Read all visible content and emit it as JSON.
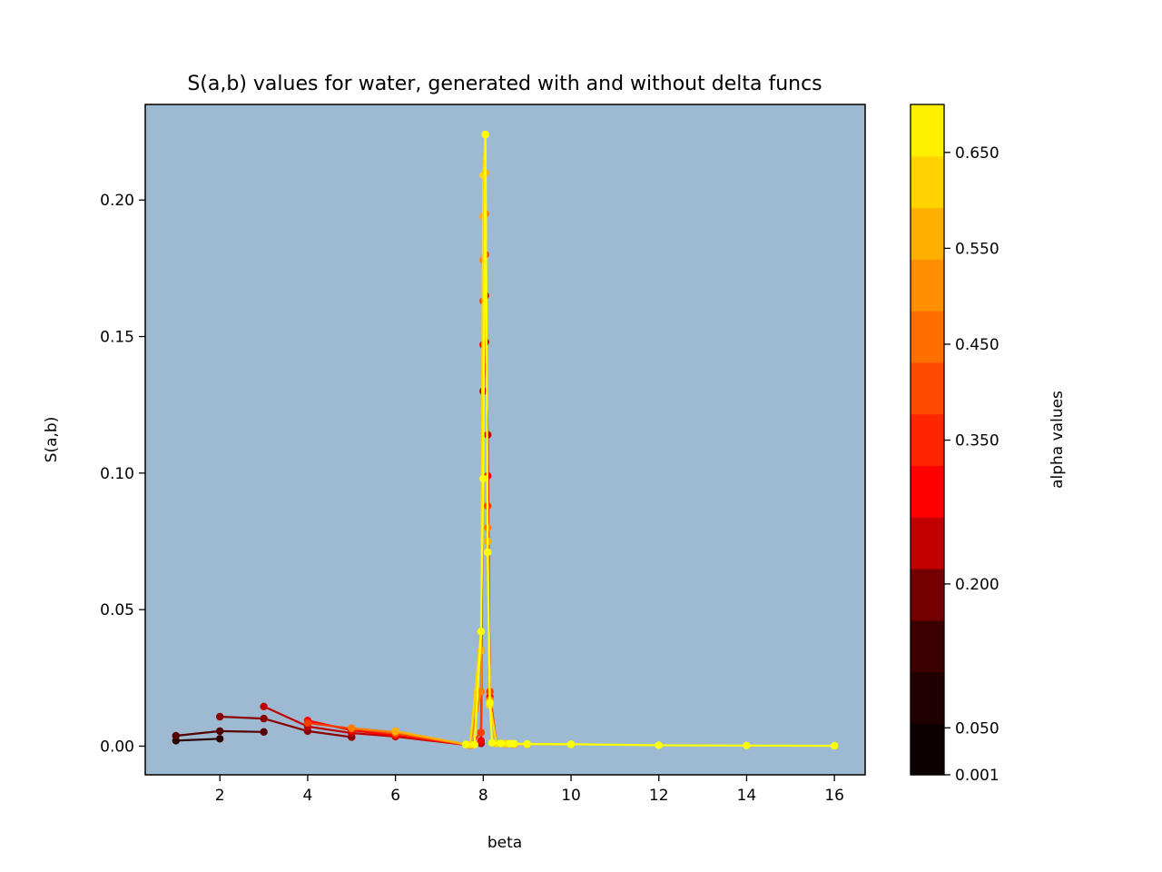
{
  "chart_data": {
    "type": "line",
    "title": "S(a,b) values for water, generated with and without delta funcs",
    "xlabel": "beta",
    "ylabel": "S(a,b)",
    "xlim": [
      0.3,
      16.7
    ],
    "ylim": [
      -0.0105,
      0.235
    ],
    "xticks": [
      2,
      4,
      6,
      8,
      10,
      12,
      14,
      16
    ],
    "yticks": [
      0.0,
      0.05,
      0.1,
      0.15,
      0.2
    ],
    "xtick_labels": [
      "2",
      "4",
      "6",
      "8",
      "10",
      "12",
      "14",
      "16"
    ],
    "ytick_labels": [
      "0.00",
      "0.05",
      "0.10",
      "0.15",
      "0.20"
    ],
    "plot_background": "#9ebad2",
    "markers": true,
    "grid": false,
    "colorbar": {
      "label": "alpha values",
      "colormap": "hot (discrete)",
      "range": [
        0.001,
        0.7
      ],
      "tick_values": [
        0.001,
        0.05,
        0.2,
        0.35,
        0.45,
        0.55,
        0.65
      ],
      "tick_labels": [
        "0.001",
        "0.050",
        "0.200",
        "0.350",
        "0.450",
        "0.550",
        "0.650"
      ],
      "band_colors": [
        "#0d0000",
        "#200000",
        "#3d0000",
        "#760000",
        "#c20000",
        "#ff0000",
        "#ff2500",
        "#ff4a00",
        "#ff6e00",
        "#ff8f00",
        "#ffaf00",
        "#ffd200",
        "#fff000"
      ]
    },
    "series": [
      {
        "color": "#2a0000",
        "x": [
          1,
          2
        ],
        "y": [
          0.002,
          0.0027
        ]
      },
      {
        "color": "#550000",
        "x": [
          1,
          2,
          3
        ],
        "y": [
          0.0038,
          0.0055,
          0.0052
        ]
      },
      {
        "color": "#8b0000",
        "x": [
          2,
          3,
          4,
          5
        ],
        "y": [
          0.0108,
          0.0101,
          0.0055,
          0.0033
        ]
      },
      {
        "color": "#c00000",
        "x": [
          3,
          4,
          5,
          6,
          7.7,
          7.95,
          8.0,
          8.05,
          8.1,
          8.15,
          8.3,
          8.5,
          8.7
        ],
        "y": [
          0.0145,
          0.0072,
          0.0048,
          0.0035,
          0.0003,
          0.001,
          0.13,
          0.148,
          0.114,
          0.016,
          0.001,
          0.0008,
          0.0006
        ]
      },
      {
        "color": "#ff0000",
        "x": [
          4,
          5,
          6,
          7.7,
          7.95,
          8.0,
          8.05,
          8.1,
          8.15,
          8.3,
          8.5,
          8.7
        ],
        "y": [
          0.0094,
          0.0058,
          0.004,
          0.0003,
          0.002,
          0.147,
          0.165,
          0.099,
          0.018,
          0.001,
          0.0008,
          0.0006
        ]
      },
      {
        "color": "#ff3c00",
        "x": [
          4,
          5,
          6,
          7.7,
          7.95,
          8.0,
          8.05,
          8.1,
          8.15,
          8.3,
          8.5,
          8.7
        ],
        "y": [
          0.0085,
          0.0064,
          0.0045,
          0.0003,
          0.005,
          0.163,
          0.18,
          0.088,
          0.02,
          0.001,
          0.0008,
          0.0006
        ]
      },
      {
        "color": "#ff8000",
        "x": [
          5,
          6,
          7.7,
          7.95,
          8.0,
          8.05,
          8.1,
          8.15,
          8.3,
          8.5,
          8.7
        ],
        "y": [
          0.0066,
          0.0051,
          0.0003,
          0.02,
          0.178,
          0.195,
          0.08,
          0.017,
          0.001,
          0.0008,
          0.0006
        ]
      },
      {
        "color": "#ffb000",
        "x": [
          6,
          7.7,
          7.95,
          8.0,
          8.05,
          8.1,
          8.15,
          8.3,
          8.5,
          8.7,
          9
        ],
        "y": [
          0.0055,
          0.0004,
          0.035,
          0.194,
          0.21,
          0.075,
          0.016,
          0.001,
          0.0008,
          0.0006,
          0.0006
        ]
      },
      {
        "color": "#ffd800",
        "x": [
          7.7,
          7.95,
          8.0,
          8.05,
          8.1,
          8.15,
          8.3,
          8.5,
          8.7,
          9,
          10
        ],
        "y": [
          0.0005,
          0.042,
          0.209,
          0.224,
          0.071,
          0.015,
          0.001,
          0.0009,
          0.0007,
          0.0007,
          0.0006
        ]
      },
      {
        "color": "#ffff00",
        "x": [
          7.6,
          7.8,
          7.95,
          8.0,
          8.05,
          8.1,
          8.15,
          8.2,
          8.4,
          8.6,
          8.7,
          9,
          10,
          12,
          14,
          16
        ],
        "y": [
          0.0006,
          0.0006,
          0.042,
          0.098,
          0.224,
          0.071,
          0.016,
          0.0012,
          0.001,
          0.0009,
          0.0009,
          0.0008,
          0.0007,
          0.0003,
          0.0002,
          0.0001
        ]
      }
    ]
  }
}
